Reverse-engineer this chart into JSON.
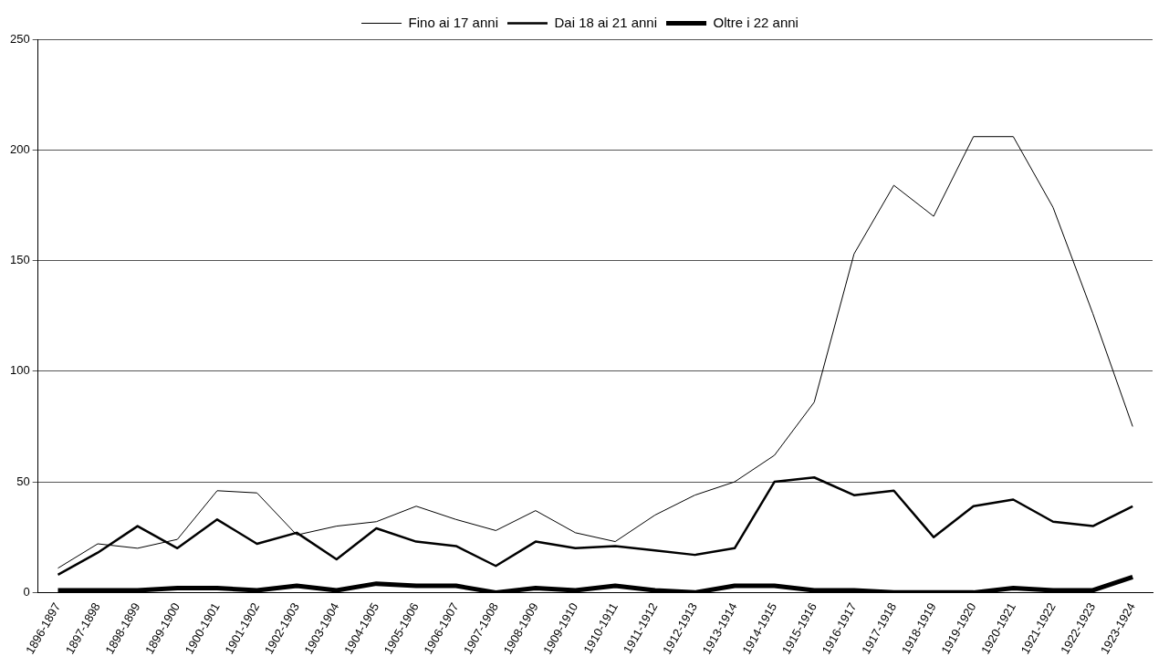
{
  "chart_data": {
    "type": "line",
    "categories": [
      "1896-1897",
      "1897-1898",
      "1898-1899",
      "1899-1900",
      "1900-1901",
      "1901-1902",
      "1902-1903",
      "1903-1904",
      "1904-1905",
      "1905-1906",
      "1906-1907",
      "1907-1908",
      "1908-1909",
      "1909-1910",
      "1910-1911",
      "1911-1912",
      "1912-1913",
      "1913-1914",
      "1914-1915",
      "1915-1916",
      "1916-1917",
      "1917-1918",
      "1918-1919",
      "1919-1920",
      "1920-1921",
      "1921-1922",
      "1922-1923",
      "1923-1924"
    ],
    "series": [
      {
        "name": "Fino ai 17 anni",
        "color": "#000000",
        "values": [
          11,
          22,
          20,
          24,
          46,
          45,
          26,
          30,
          32,
          39,
          33,
          28,
          37,
          27,
          23,
          35,
          44,
          50,
          62,
          86,
          153,
          184,
          170,
          206,
          206,
          174,
          126,
          75
        ]
      },
      {
        "name": "Dai 18 ai 21 anni",
        "color": "#000000",
        "values": [
          8,
          18,
          30,
          20,
          33,
          22,
          27,
          15,
          29,
          23,
          21,
          12,
          23,
          20,
          21,
          19,
          17,
          20,
          50,
          52,
          44,
          46,
          25,
          39,
          42,
          32,
          30,
          39
        ]
      },
      {
        "name": "Oltre i 22 anni",
        "color": "#000000",
        "values": [
          1,
          1,
          1,
          2,
          2,
          1,
          3,
          1,
          4,
          3,
          3,
          0,
          2,
          1,
          3,
          1,
          0,
          3,
          3,
          1,
          1,
          0,
          0,
          0,
          2,
          1,
          1,
          7
        ]
      }
    ],
    "ylim": [
      0,
      250
    ],
    "yticks": [
      0,
      50,
      100,
      150,
      200,
      250
    ],
    "grid": "y",
    "legend": "top",
    "marker": "none",
    "line_style": "solid"
  }
}
